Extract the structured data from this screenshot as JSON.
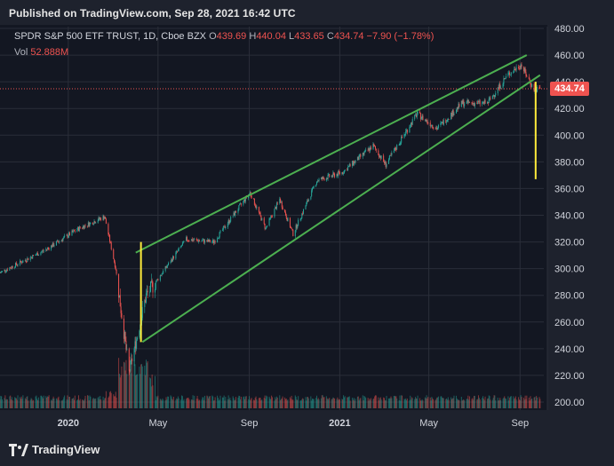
{
  "header": {
    "published": "Published on TradingView.com, Sep 28, 2021 16:42 UTC"
  },
  "legend": {
    "symbol": "SPDR S&P 500 ETF TRUST, 1D, Cboe BZX",
    "open_label": "O",
    "open": "439.69",
    "high_label": "H",
    "high": "440.04",
    "low_label": "L",
    "low": "433.65",
    "close_label": "C",
    "close": "434.74",
    "change": "−7.90 (−1.78%)",
    "vol_label": "Vol",
    "vol": "52.888M"
  },
  "price_tag": "434.74",
  "footer": {
    "brand": "TradingView"
  },
  "colors": {
    "up": "#26a69a",
    "down": "#ef5350",
    "trendline": "#4caf50",
    "annotation": "#ffeb3b",
    "background": "#131722"
  },
  "chart_data": {
    "type": "candlestick",
    "y_axis_ticks": [
      "480.00",
      "460.00",
      "440.00",
      "420.00",
      "400.00",
      "380.00",
      "360.00",
      "340.00",
      "320.00",
      "300.00",
      "280.00",
      "260.00",
      "240.00",
      "220.00",
      "200.00"
    ],
    "x_axis_ticks": [
      "2020",
      "May",
      "Sep",
      "2021",
      "May",
      "Sep"
    ],
    "ylim": [
      195,
      485
    ],
    "last_price": 434.74,
    "price_path": [
      {
        "date": "2019-10-01",
        "close": 297
      },
      {
        "date": "2019-12-01",
        "close": 314
      },
      {
        "date": "2020-01-15",
        "close": 330
      },
      {
        "date": "2020-02-19",
        "close": 339
      },
      {
        "date": "2020-03-05",
        "close": 300
      },
      {
        "date": "2020-03-23",
        "close": 222
      },
      {
        "date": "2020-04-15",
        "close": 280
      },
      {
        "date": "2020-06-08",
        "close": 322
      },
      {
        "date": "2020-07-15",
        "close": 320
      },
      {
        "date": "2020-09-02",
        "close": 357
      },
      {
        "date": "2020-09-23",
        "close": 330
      },
      {
        "date": "2020-10-12",
        "close": 352
      },
      {
        "date": "2020-10-30",
        "close": 326
      },
      {
        "date": "2020-12-01",
        "close": 366
      },
      {
        "date": "2021-01-04",
        "close": 372
      },
      {
        "date": "2021-02-15",
        "close": 392
      },
      {
        "date": "2021-03-04",
        "close": 378
      },
      {
        "date": "2021-04-15",
        "close": 416
      },
      {
        "date": "2021-05-12",
        "close": 405
      },
      {
        "date": "2021-06-15",
        "close": 424
      },
      {
        "date": "2021-07-19",
        "close": 424
      },
      {
        "date": "2021-08-15",
        "close": 445
      },
      {
        "date": "2021-09-02",
        "close": 453
      },
      {
        "date": "2021-09-20",
        "close": 434
      },
      {
        "date": "2021-09-28",
        "close": 434.74
      }
    ],
    "trendlines": [
      {
        "from": {
          "date": "2020-04-01",
          "price": 312
        },
        "to": {
          "date": "2021-09-10",
          "price": 460
        }
      },
      {
        "from": {
          "date": "2020-04-10",
          "price": 245
        },
        "to": {
          "date": "2021-09-28",
          "price": 445
        }
      }
    ],
    "annotations": [
      {
        "type": "vertical",
        "date": "2020-04-08",
        "from": 245,
        "to": 320
      },
      {
        "type": "vertical",
        "date": "2021-09-22",
        "from": 367,
        "to": 440
      }
    ]
  }
}
